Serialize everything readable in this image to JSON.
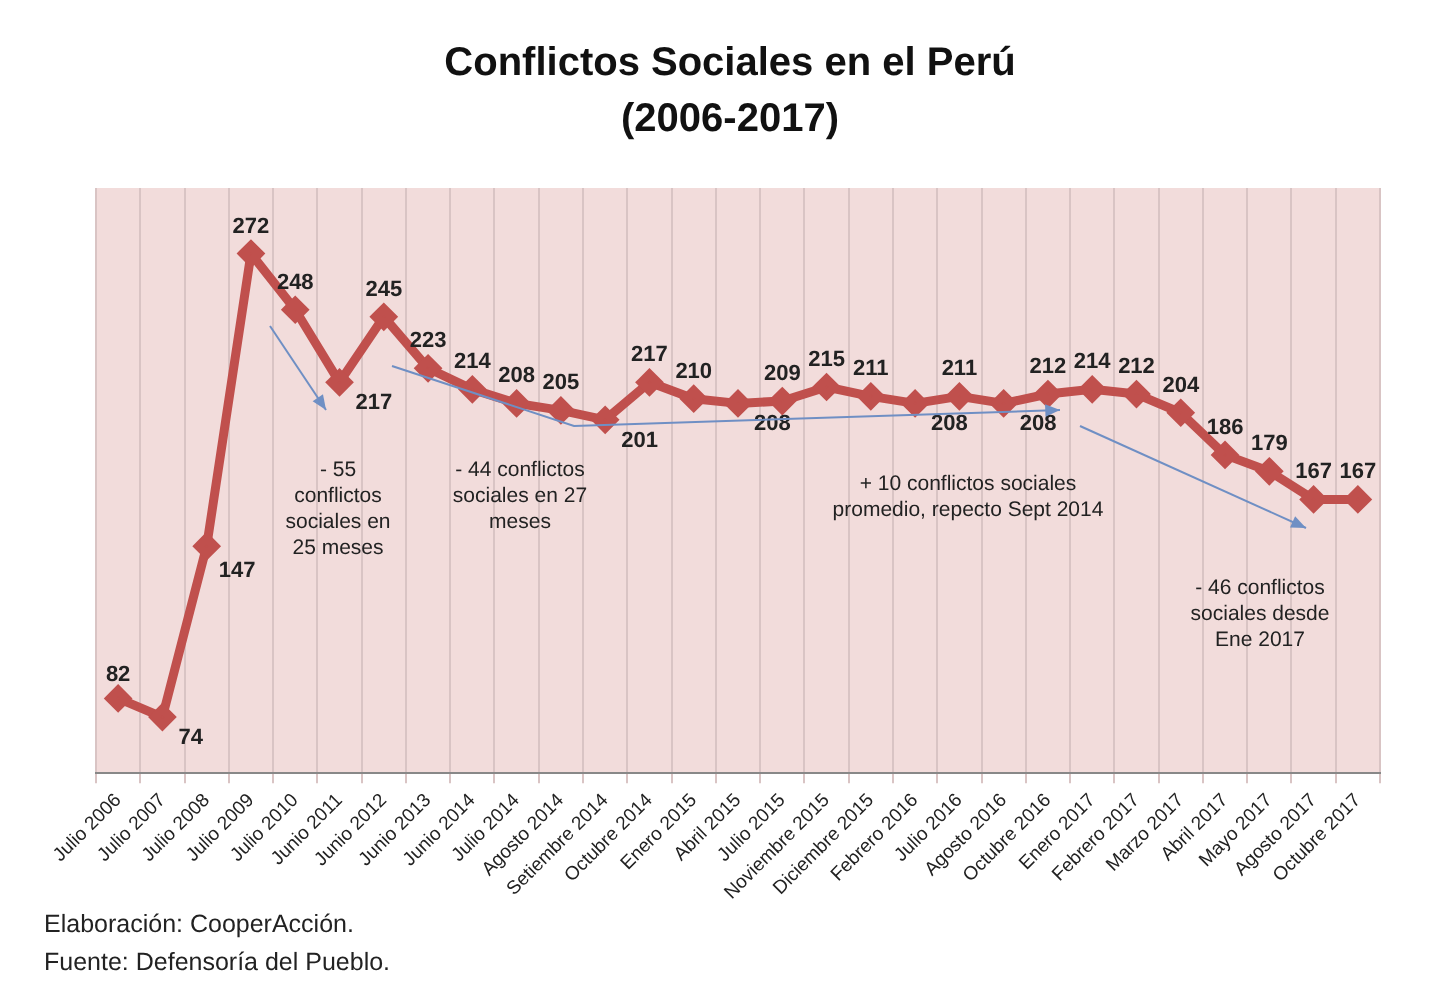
{
  "chart_data": {
    "type": "line",
    "title": "Conflictos Sociales en el Perú",
    "subtitle": "(2006-2017)",
    "categories": [
      "Julio 2006",
      "Julio 2007",
      "Julio 2008",
      "Julio 2009",
      "Julio 2010",
      "Junio 2011",
      "Junio 2012",
      "Junio 2013",
      "Junio 2014",
      "Julio 2014",
      "Agosto 2014",
      "Setiembre 2014",
      "Octubre 2014",
      "Enero 2015",
      "Abril 2015",
      "Julio 2015",
      "Noviembre 2015",
      "Diciembre 2015",
      "Febrero 2016",
      "Julio 2016",
      "Agosto 2016",
      "Octubre 2016",
      "Enero 2017",
      "Febrero 2017",
      "Marzo 2017",
      "Abril 2017",
      "Mayo 2017",
      "Agosto 2017",
      "Octubre 2017"
    ],
    "series": [
      {
        "color": "#c0504d",
        "values": [
          82,
          74,
          147,
          272,
          248,
          217,
          245,
          223,
          214,
          208,
          205,
          201,
          217,
          210,
          208,
          209,
          215,
          211,
          208,
          211,
          208,
          212,
          214,
          212,
          204,
          186,
          179,
          167,
          167
        ]
      }
    ],
    "data_labels": true,
    "marker": "diamond",
    "line_style": "solid",
    "grid": "x",
    "legend": false,
    "tick_labels": "x",
    "annotations": [
      "- 55 conflictos sociales en 25 meses",
      "- 44 conflictos sociales en 27 meses",
      "+ 10 conflictos sociales promedio, repecto Sept 2014",
      "- 46 conflictos sociales desde Ene 2017",
      "Elaboración: CooperAcción.",
      "Fuente: Defensoría del Pueblo."
    ]
  }
}
